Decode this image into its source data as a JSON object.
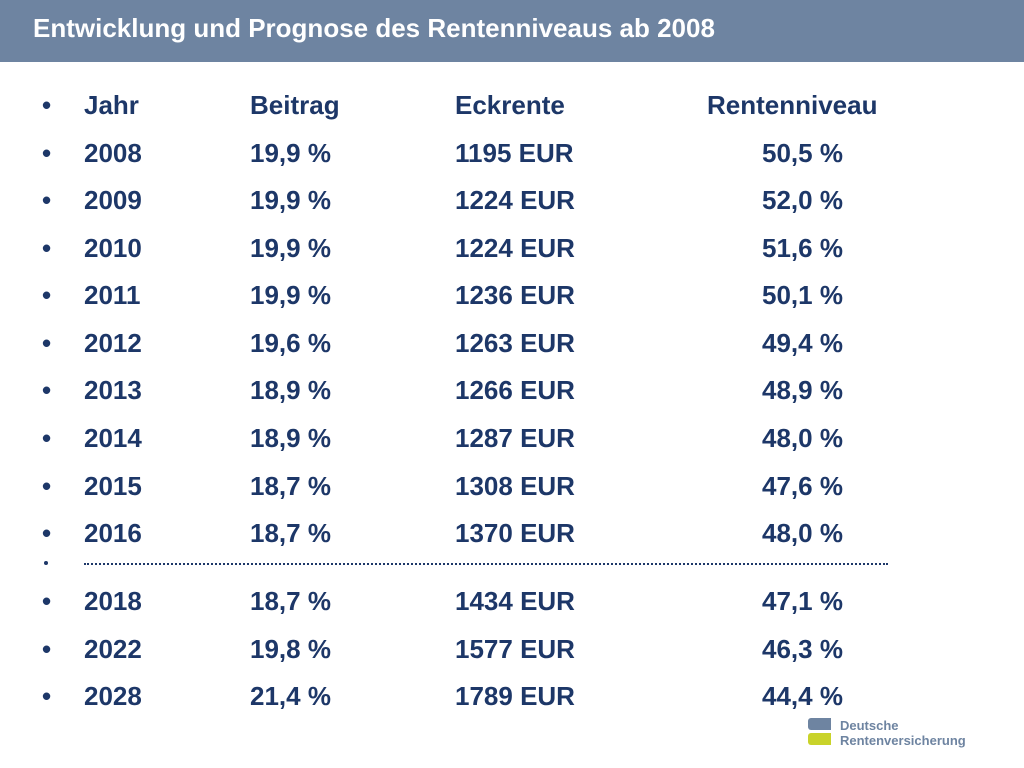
{
  "title": "Entwicklung und Prognose des Rentenniveaus ab 2008",
  "bullet": "•",
  "header": {
    "year": "Jahr",
    "beitrag": "Beitrag",
    "eckrente": "Eckrente",
    "rentenniveau": "Rentenniveau"
  },
  "rows": [
    {
      "year": "2008",
      "beitrag": "19,9 %",
      "eckrente": "1195 EUR",
      "rentenniveau": "50,5 %"
    },
    {
      "year": "2009",
      "beitrag": "19,9 %",
      "eckrente": "1224 EUR",
      "rentenniveau": "52,0 %"
    },
    {
      "year": "2010",
      "beitrag": "19,9 %",
      "eckrente": "1224 EUR",
      "rentenniveau": "51,6 %"
    },
    {
      "year": "2011",
      "beitrag": "19,9 %",
      "eckrente": "1236 EUR",
      "rentenniveau": "50,1 %"
    },
    {
      "year": "2012",
      "beitrag": "19,6 %",
      "eckrente": "1263 EUR",
      "rentenniveau": "49,4 %"
    },
    {
      "year": "2013",
      "beitrag": "18,9 %",
      "eckrente": "1266 EUR",
      "rentenniveau": "48,9 %"
    },
    {
      "year": "2014",
      "beitrag": "18,9 %",
      "eckrente": "1287 EUR",
      "rentenniveau": "48,0 %"
    },
    {
      "year": "2015",
      "beitrag": "18,7 %",
      "eckrente": "1308 EUR",
      "rentenniveau": "47,6 %"
    },
    {
      "year": "2016",
      "beitrag": "18,7 %",
      "eckrente": "1370 EUR",
      "rentenniveau": "48,0 %"
    }
  ],
  "forecast_rows": [
    {
      "year": "2018",
      "beitrag": "18,7 %",
      "eckrente": "1434 EUR",
      "rentenniveau": "47,1 %"
    },
    {
      "year": "2022",
      "beitrag": "19,8 %",
      "eckrente": "1577 EUR",
      "rentenniveau": "46,3 %"
    },
    {
      "year": "2028",
      "beitrag": "21,4 %",
      "eckrente": "1789 EUR",
      "rentenniveau": "44,4 %"
    }
  ],
  "logo": {
    "line1": "Deutsche",
    "line2": "Rentenversicherung"
  },
  "colors": {
    "title_bar": "#6e84a1",
    "text": "#1d3768",
    "logo_green": "#c9d32a"
  }
}
